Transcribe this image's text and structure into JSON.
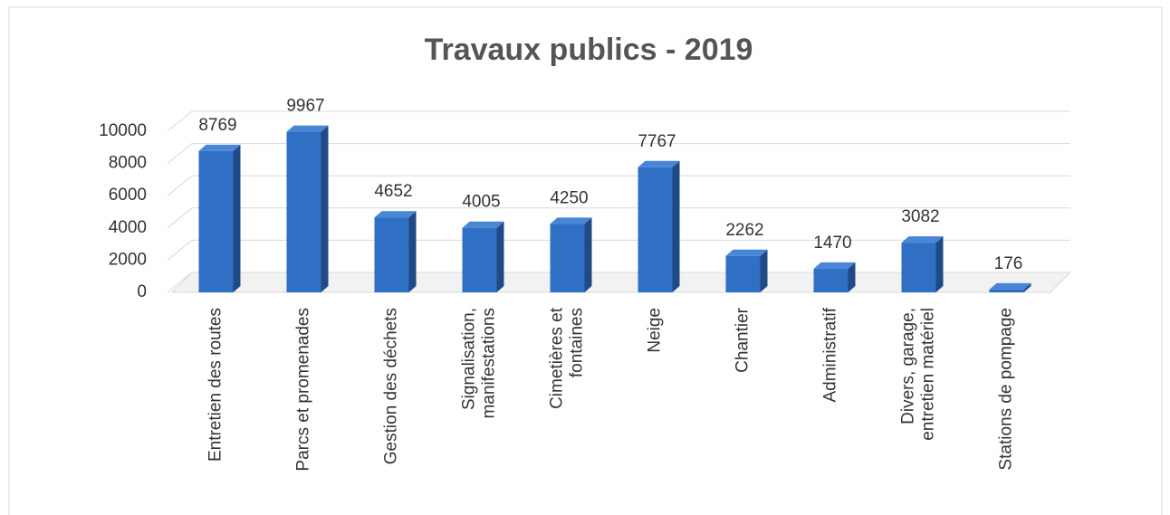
{
  "chart_data": {
    "type": "bar3d",
    "title": "Travaux publics - 2019",
    "categories": [
      "Entretien des routes",
      "Parcs et promenades",
      "Gestion des déchets",
      "Signalisation,\nmanifestations",
      "Cimetières et\nfontaines",
      "Neige",
      "Chantier",
      "Administratif",
      "Divers, garage,\nentretien matériel",
      "Stations de pompage"
    ],
    "values": [
      8769,
      9967,
      4652,
      4005,
      4250,
      7767,
      2262,
      1470,
      3082,
      176
    ],
    "color": "#2f6fc4",
    "ylim": [
      0,
      10000
    ],
    "yticks": [
      0,
      2000,
      4000,
      6000,
      8000,
      10000
    ],
    "grid": true
  }
}
